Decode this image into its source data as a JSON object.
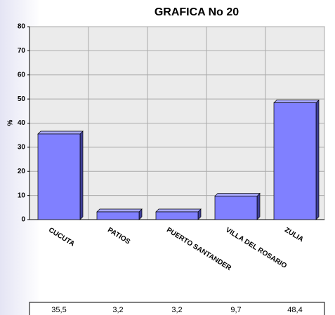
{
  "chart_data": {
    "type": "bar",
    "title": "GRAFICA No 20",
    "y_label": "%",
    "categories": [
      "CUCUTA",
      "PATIOS",
      "PUERTO SANTANDER",
      "VILLA DEL ROSARIO",
      "ZULIA"
    ],
    "values": [
      35.5,
      3.2,
      3.2,
      9.7,
      48.4
    ],
    "value_labels": [
      "35,5",
      "3,2",
      "3,2",
      "9,7",
      "48,4"
    ],
    "color": "#8080ff",
    "ylim": [
      0,
      80
    ],
    "yticks": [
      0,
      10,
      20,
      30,
      40,
      50,
      60,
      70,
      80
    ],
    "grid": true
  }
}
